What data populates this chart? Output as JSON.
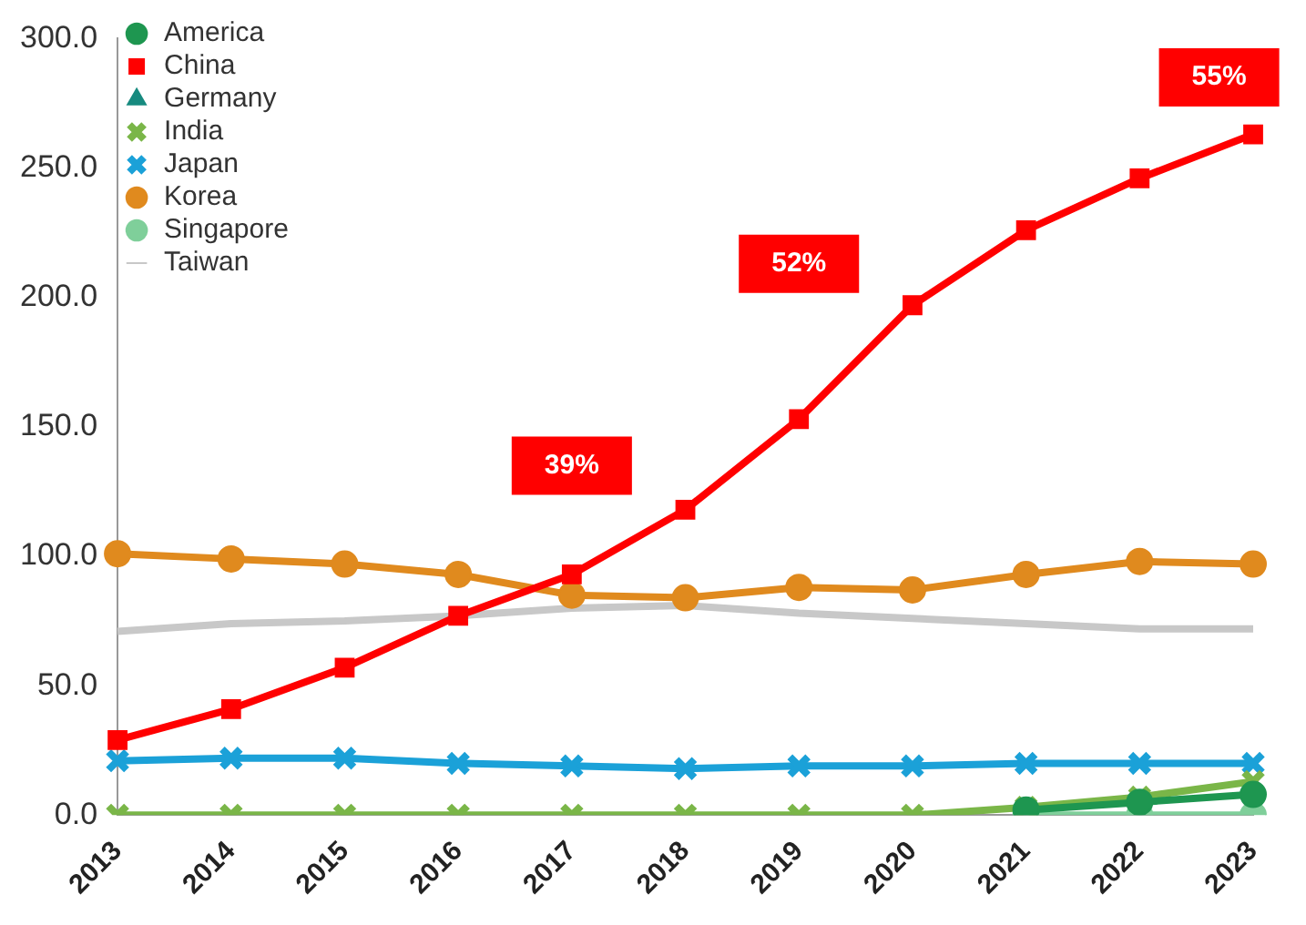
{
  "chart_data": {
    "type": "line",
    "categories": [
      "2013",
      "2014",
      "2015",
      "2016",
      "2017",
      "2018",
      "2019",
      "2020",
      "2021",
      "2022",
      "2023"
    ],
    "series": [
      {
        "name": "America",
        "color": "#1e9650",
        "marker": "circle",
        "values": [
          null,
          null,
          null,
          null,
          null,
          null,
          null,
          null,
          2,
          5,
          8
        ]
      },
      {
        "name": "China",
        "color": "#ff0000",
        "marker": "square",
        "values": [
          29,
          41,
          57,
          77,
          93,
          118,
          153,
          197,
          226,
          246,
          263
        ]
      },
      {
        "name": "Germany",
        "color": "#178a7f",
        "marker": "triangle",
        "values": [
          null,
          null,
          null,
          null,
          null,
          null,
          null,
          null,
          null,
          null,
          null
        ]
      },
      {
        "name": "India",
        "color": "#7ab648",
        "marker": "cross",
        "values": [
          0,
          0,
          0,
          0,
          0,
          0,
          0,
          0,
          3,
          7,
          13
        ]
      },
      {
        "name": "Japan",
        "color": "#1ba1d8",
        "marker": "cross",
        "values": [
          21,
          22,
          22,
          20,
          19,
          18,
          19,
          19,
          20,
          20,
          20
        ]
      },
      {
        "name": "Korea",
        "color": "#e08a1e",
        "marker": "circle",
        "values": [
          101,
          99,
          97,
          93,
          85,
          84,
          88,
          87,
          93,
          98,
          97
        ]
      },
      {
        "name": "Singapore",
        "color": "#7fcf9a",
        "marker": "circle",
        "values": [
          null,
          null,
          null,
          null,
          null,
          null,
          null,
          null,
          0,
          0,
          0
        ]
      },
      {
        "name": "Taiwan",
        "color": "#c8c8c8",
        "marker": "none",
        "values": [
          71,
          74,
          75,
          77,
          80,
          81,
          78,
          76,
          74,
          72,
          72
        ]
      }
    ],
    "ylim": [
      0,
      300
    ],
    "yticks": [
      {
        "value": 0,
        "label": "0.0"
      },
      {
        "value": 50,
        "label": "50.0"
      },
      {
        "value": 100,
        "label": "100.0"
      },
      {
        "value": 150,
        "label": "150.0"
      },
      {
        "value": 200,
        "label": "200.0"
      },
      {
        "value": 250,
        "label": "250.0"
      },
      {
        "value": 300,
        "label": "300.0"
      }
    ],
    "annotations": [
      "39%",
      "52%",
      "55%"
    ],
    "grid": false,
    "legend": "top left",
    "line_style": "solid"
  }
}
